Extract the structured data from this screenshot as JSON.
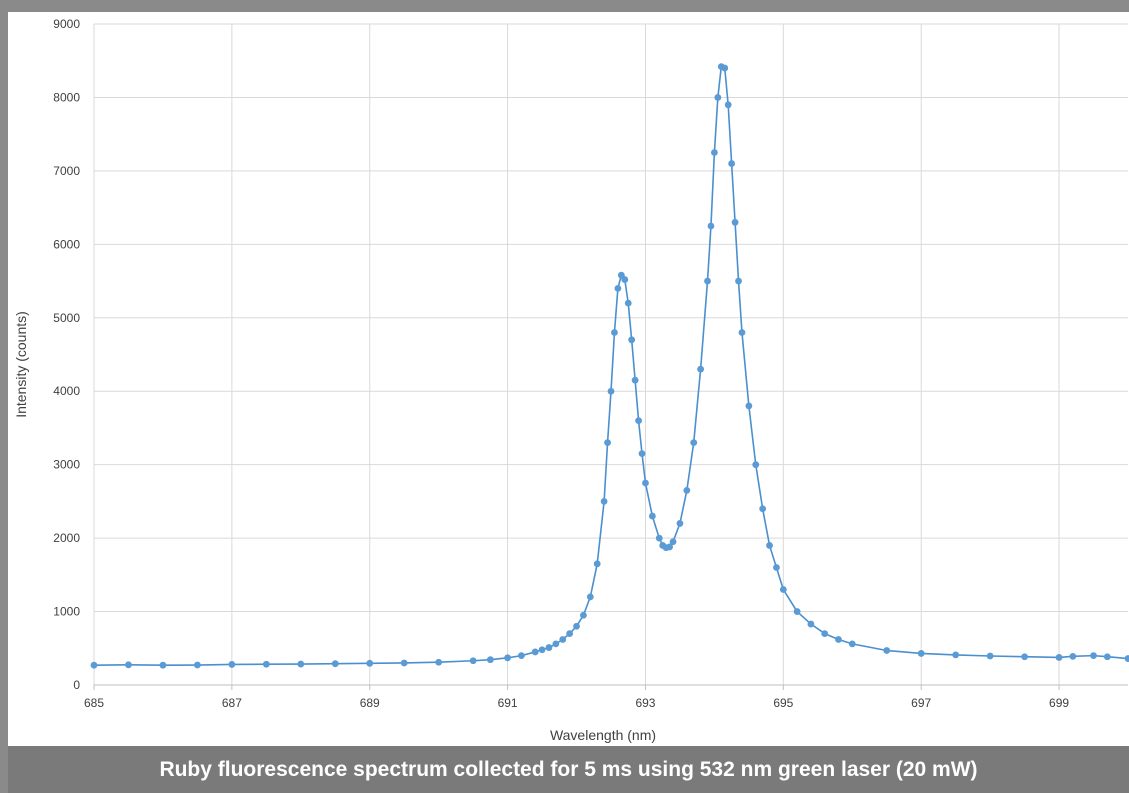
{
  "caption": "Ruby fluorescence spectrum collected for 5 ms using 532 nm green laser (20 mW)",
  "chart_data": {
    "type": "scatter",
    "title": "",
    "xlabel": "Wavelength (nm)",
    "ylabel": "Intensity (counts)",
    "xlim": [
      685,
      700
    ],
    "ylim": [
      0,
      9000
    ],
    "x_ticks": [
      685,
      687,
      689,
      691,
      693,
      695,
      697,
      699
    ],
    "y_ticks": [
      0,
      1000,
      2000,
      3000,
      4000,
      5000,
      6000,
      7000,
      8000,
      9000
    ],
    "grid": true,
    "legend": "none",
    "series_color": "#5b9bd5",
    "line_color": "#4a8fcf",
    "series": [
      {
        "points": [
          [
            685.0,
            270
          ],
          [
            685.5,
            275
          ],
          [
            686.0,
            270
          ],
          [
            686.5,
            272
          ],
          [
            687.0,
            280
          ],
          [
            687.5,
            283
          ],
          [
            688.0,
            285
          ],
          [
            688.5,
            290
          ],
          [
            689.0,
            295
          ],
          [
            689.5,
            300
          ],
          [
            690.0,
            310
          ],
          [
            690.5,
            330
          ],
          [
            690.75,
            345
          ],
          [
            691.0,
            370
          ],
          [
            691.2,
            400
          ],
          [
            691.4,
            450
          ],
          [
            691.5,
            480
          ],
          [
            691.6,
            510
          ],
          [
            691.7,
            560
          ],
          [
            691.8,
            620
          ],
          [
            691.9,
            700
          ],
          [
            692.0,
            800
          ],
          [
            692.1,
            950
          ],
          [
            692.2,
            1200
          ],
          [
            692.3,
            1650
          ],
          [
            692.4,
            2500
          ],
          [
            692.45,
            3300
          ],
          [
            692.5,
            4000
          ],
          [
            692.55,
            4800
          ],
          [
            692.6,
            5400
          ],
          [
            692.65,
            5580
          ],
          [
            692.7,
            5520
          ],
          [
            692.75,
            5200
          ],
          [
            692.8,
            4700
          ],
          [
            692.85,
            4150
          ],
          [
            692.9,
            3600
          ],
          [
            692.95,
            3150
          ],
          [
            693.0,
            2750
          ],
          [
            693.1,
            2300
          ],
          [
            693.2,
            2000
          ],
          [
            693.25,
            1900
          ],
          [
            693.3,
            1870
          ],
          [
            693.35,
            1880
          ],
          [
            693.4,
            1950
          ],
          [
            693.5,
            2200
          ],
          [
            693.6,
            2650
          ],
          [
            693.7,
            3300
          ],
          [
            693.8,
            4300
          ],
          [
            693.9,
            5500
          ],
          [
            693.95,
            6250
          ],
          [
            694.0,
            7250
          ],
          [
            694.05,
            8000
          ],
          [
            694.1,
            8420
          ],
          [
            694.15,
            8400
          ],
          [
            694.2,
            7900
          ],
          [
            694.25,
            7100
          ],
          [
            694.3,
            6300
          ],
          [
            694.35,
            5500
          ],
          [
            694.4,
            4800
          ],
          [
            694.5,
            3800
          ],
          [
            694.6,
            3000
          ],
          [
            694.7,
            2400
          ],
          [
            694.8,
            1900
          ],
          [
            694.9,
            1600
          ],
          [
            695.0,
            1300
          ],
          [
            695.2,
            1000
          ],
          [
            695.4,
            830
          ],
          [
            695.6,
            700
          ],
          [
            695.8,
            620
          ],
          [
            696.0,
            560
          ],
          [
            696.5,
            470
          ],
          [
            697.0,
            430
          ],
          [
            697.5,
            410
          ],
          [
            698.0,
            395
          ],
          [
            698.5,
            385
          ],
          [
            699.0,
            375
          ],
          [
            699.2,
            390
          ],
          [
            699.5,
            400
          ],
          [
            699.7,
            385
          ],
          [
            700.0,
            360
          ]
        ]
      }
    ]
  }
}
